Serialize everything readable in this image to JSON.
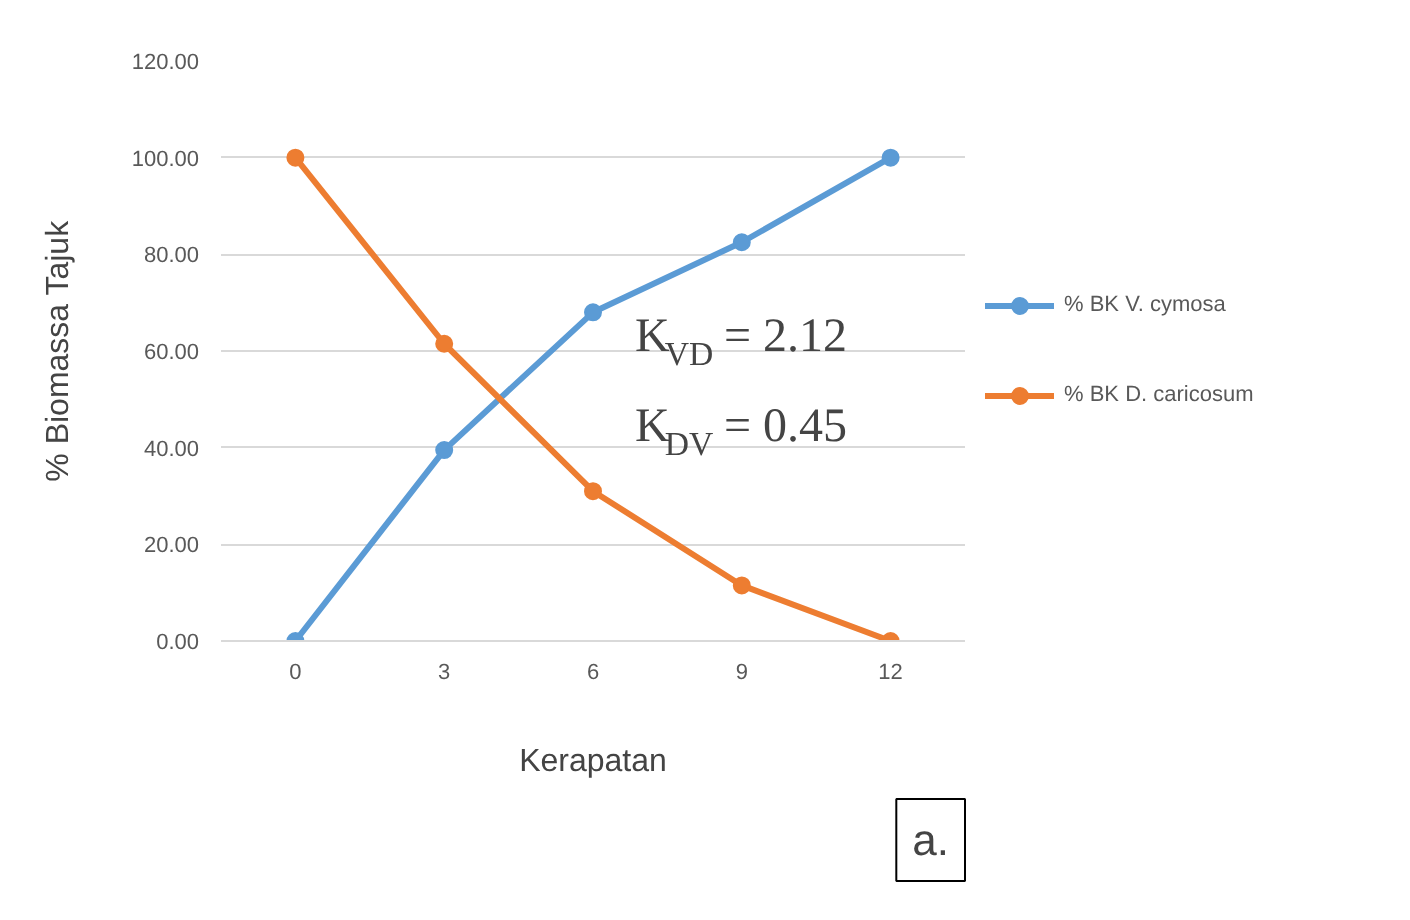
{
  "chart_data": {
    "type": "line",
    "xlabel": "Kerapatan",
    "ylabel": "% Biomassa Tajuk",
    "categories": [
      "0",
      "3",
      "6",
      "9",
      "12"
    ],
    "series": [
      {
        "name": "% BK V. cymosa",
        "color": "#5b9bd5",
        "values": [
          0,
          39.5,
          68,
          82.5,
          100
        ]
      },
      {
        "name": "% BK D. caricosum",
        "color": "#ed7d31",
        "values": [
          100,
          61.5,
          31,
          11.5,
          0
        ]
      }
    ],
    "ylim": [
      0,
      120
    ],
    "yticks": [
      {
        "value": 0,
        "label": "0.00"
      },
      {
        "value": 20,
        "label": "20.00"
      },
      {
        "value": 40,
        "label": "40.00"
      },
      {
        "value": 60,
        "label": "60.00"
      },
      {
        "value": 80,
        "label": "80.00"
      },
      {
        "value": 100,
        "label": "100.00"
      },
      {
        "value": 120,
        "label": "120.00"
      }
    ],
    "grid": "y",
    "legend": "right",
    "marker": "circle",
    "line_style": "solid",
    "annotations": [
      "K$_{VD}$ = 2.12",
      "K$_{DV}$ = 0.45",
      "a."
    ]
  }
}
